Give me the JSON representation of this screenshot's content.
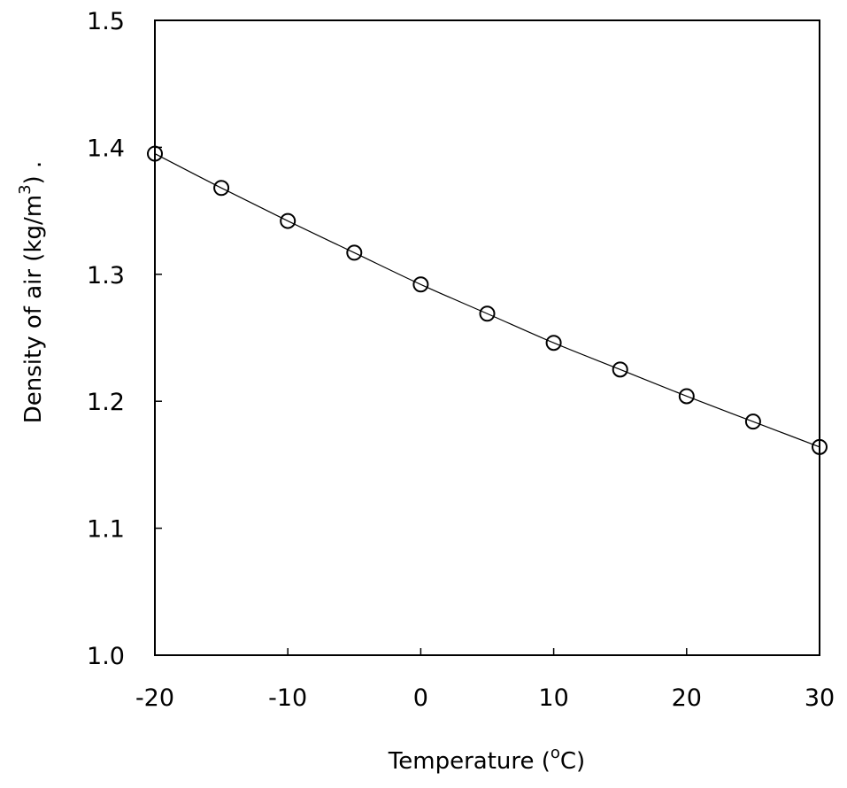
{
  "chart_data": {
    "type": "scatter",
    "title": "",
    "xlabel": "Temperature (",
    "xlabel_sup": "o",
    "xlabel_end": "C)",
    "ylabel": "Density of air (kg/m",
    "ylabel_sup": "3",
    "ylabel_end": ")   .",
    "xlim": [
      -20,
      30
    ],
    "ylim": [
      1.0,
      1.5
    ],
    "x_ticks": [
      "-20",
      "-10",
      "0",
      "10",
      "20",
      "30"
    ],
    "y_ticks": [
      "1.0",
      "1.1",
      "1.2",
      "1.3",
      "1.4",
      "1.5"
    ],
    "grid": false,
    "legend": "none",
    "series": [
      {
        "marker": "open-circle",
        "line": "smooth",
        "color": "#000000",
        "x": [
          -20,
          -15,
          -10,
          -5,
          0,
          5,
          10,
          15,
          20,
          25,
          30
        ],
        "y": [
          1.395,
          1.368,
          1.342,
          1.317,
          1.292,
          1.269,
          1.246,
          1.225,
          1.204,
          1.184,
          1.164
        ]
      }
    ]
  }
}
